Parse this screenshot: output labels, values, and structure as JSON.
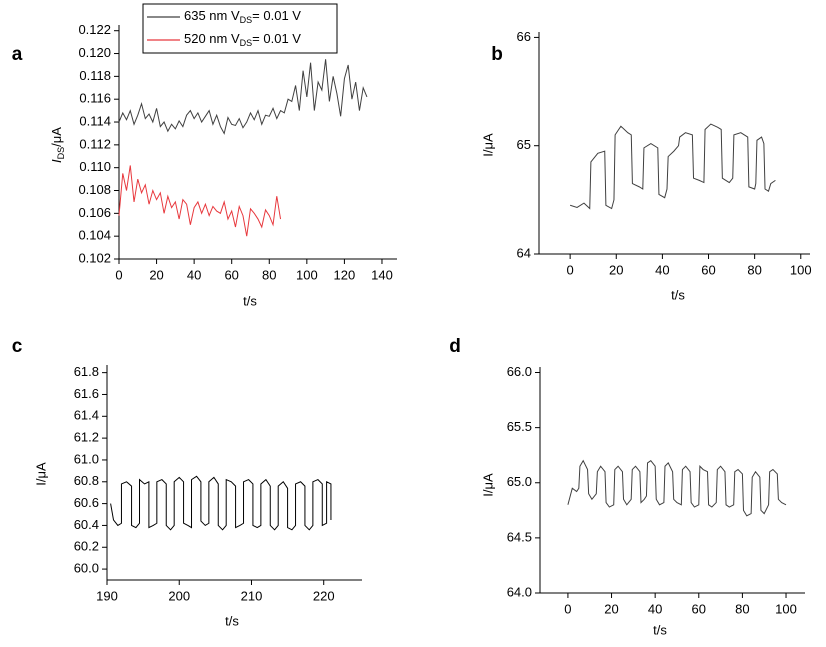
{
  "chart_data": [
    {
      "type": "line",
      "panel_label": "a",
      "xlabel": "t/s",
      "ylabel": "IDS/μA",
      "xlim": [
        0,
        148
      ],
      "ylim": [
        0.102,
        0.1225
      ],
      "xticks": [
        0,
        20,
        40,
        60,
        80,
        100,
        120,
        140
      ],
      "yticks": [
        0.102,
        0.104,
        0.106,
        0.108,
        {
          "value": 0.11,
          "label": "0.110"
        },
        0.112,
        0.114,
        0.116,
        0.118,
        {
          "value": 0.12,
          "label": "0.120"
        },
        0.122
      ],
      "series": [
        {
          "name": "635 nm VDS= 0.01 V",
          "color": "#404040",
          "x": [
            0,
            2,
            4,
            6,
            8,
            10,
            12,
            14,
            16,
            18,
            20,
            22,
            24,
            26,
            28,
            30,
            32,
            34,
            36,
            38,
            40,
            42,
            44,
            46,
            48,
            50,
            52,
            54,
            56,
            58,
            60,
            62,
            64,
            66,
            68,
            70,
            72,
            74,
            76,
            78,
            80,
            82,
            84,
            86,
            88,
            90,
            92,
            94,
            96,
            98,
            100,
            102,
            104,
            106,
            108,
            110,
            112,
            114,
            116,
            118,
            120,
            122,
            124,
            126,
            128,
            130,
            132
          ],
          "values": [
            0.114,
            0.1148,
            0.1142,
            0.115,
            0.1138,
            0.1146,
            0.1156,
            0.1143,
            0.1147,
            0.114,
            0.1152,
            0.1136,
            0.114,
            0.1132,
            0.1138,
            0.1134,
            0.1141,
            0.1136,
            0.1146,
            0.115,
            0.1143,
            0.1148,
            0.114,
            0.1145,
            0.115,
            0.1138,
            0.1146,
            0.1136,
            0.113,
            0.1144,
            0.1138,
            0.1137,
            0.1143,
            0.1135,
            0.114,
            0.1148,
            0.1142,
            0.115,
            0.1138,
            0.1146,
            0.1145,
            0.1152,
            0.1143,
            0.115,
            0.1148,
            0.116,
            0.1158,
            0.1172,
            0.115,
            0.1185,
            0.1162,
            0.1192,
            0.115,
            0.1175,
            0.1168,
            0.1195,
            0.1158,
            0.118,
            0.1165,
            0.1145,
            0.1178,
            0.119,
            0.116,
            0.1175,
            0.115,
            0.117,
            0.1162
          ]
        },
        {
          "name": "520 nm VDS= 0.01 V",
          "color": "#e8383d",
          "x": [
            0,
            2,
            4,
            6,
            8,
            10,
            12,
            14,
            16,
            18,
            20,
            22,
            24,
            26,
            28,
            30,
            32,
            34,
            36,
            38,
            40,
            42,
            44,
            46,
            48,
            50,
            52,
            54,
            56,
            58,
            60,
            62,
            64,
            66,
            68,
            70,
            72,
            74,
            76,
            78,
            80,
            82,
            84,
            86
          ],
          "values": [
            0.1058,
            0.1095,
            0.108,
            0.1102,
            0.107,
            0.109,
            0.1078,
            0.1085,
            0.1068,
            0.108,
            0.1072,
            0.1078,
            0.106,
            0.1075,
            0.1065,
            0.107,
            0.1055,
            0.1072,
            0.1068,
            0.105,
            0.1065,
            0.107,
            0.106,
            0.1068,
            0.1058,
            0.1066,
            0.1062,
            0.106,
            0.107,
            0.1055,
            0.1062,
            0.1048,
            0.1066,
            0.1058,
            0.104,
            0.1064,
            0.106,
            0.1055,
            0.1048,
            0.1063,
            0.1058,
            0.105,
            0.1075,
            0.1055
          ]
        }
      ]
    },
    {
      "type": "line",
      "panel_label": "b",
      "xlabel": "t/s",
      "ylabel": "I/μA",
      "xlim": [
        -13.5,
        104
      ],
      "ylim": [
        64,
        66.05
      ],
      "xticks": [
        0,
        20,
        40,
        60,
        80,
        100
      ],
      "yticks": [
        64,
        65,
        66
      ],
      "series": [
        {
          "color": "#404040",
          "x": [
            0,
            3,
            6,
            8.5,
            9,
            12,
            15,
            15.5,
            18,
            19,
            19.5,
            22,
            25,
            26.5,
            27,
            30,
            31.5,
            32,
            35,
            38,
            38.5,
            41,
            42,
            42.5,
            45,
            47,
            47.5,
            50,
            53,
            53.5,
            56,
            58,
            58.5,
            61,
            64,
            65.5,
            66,
            69,
            70.5,
            71,
            74,
            77,
            77.5,
            80,
            80.5,
            81,
            83,
            84,
            84.5,
            86,
            87,
            89
          ],
          "values": [
            64.45,
            64.43,
            64.47,
            64.42,
            64.85,
            64.93,
            64.95,
            64.45,
            64.42,
            64.5,
            65.1,
            65.18,
            65.12,
            65.1,
            64.65,
            64.62,
            64.6,
            64.98,
            65.02,
            64.98,
            64.55,
            64.52,
            64.6,
            64.9,
            64.95,
            65.0,
            65.08,
            65.12,
            65.1,
            64.7,
            64.68,
            64.66,
            65.15,
            65.2,
            65.17,
            65.15,
            64.7,
            64.66,
            64.7,
            65.1,
            65.12,
            65.08,
            64.62,
            64.6,
            64.65,
            65.05,
            65.08,
            65.02,
            64.6,
            64.58,
            64.65,
            64.68
          ]
        }
      ]
    },
    {
      "type": "line",
      "panel_label": "c",
      "xlabel": "t/s",
      "ylabel": "I/μA",
      "xlim": [
        190,
        225.3
      ],
      "ylim": [
        59.9,
        61.87
      ],
      "xticks": [
        190,
        200,
        210,
        220
      ],
      "yticks": [
        {
          "value": 60,
          "label": "60.0"
        },
        60.2,
        60.4,
        60.6,
        60.8,
        {
          "value": 61,
          "label": "61.0"
        },
        61.2,
        61.4,
        61.6,
        61.8
      ],
      "series": [
        {
          "color": "#000000",
          "x": [
            190.5,
            190.9,
            191.5,
            192.0,
            192.0,
            192.7,
            193.4,
            193.4,
            194.0,
            194.5,
            194.5,
            195.2,
            195.8,
            195.8,
            196.4,
            196.9,
            196.9,
            197.6,
            198.2,
            198.2,
            198.8,
            199.3,
            199.3,
            200.0,
            200.6,
            200.6,
            201.2,
            201.7,
            201.7,
            202.4,
            203.0,
            203.0,
            203.6,
            204.1,
            204.1,
            204.8,
            205.4,
            205.4,
            206.0,
            206.5,
            206.5,
            207.2,
            207.8,
            207.8,
            208.4,
            208.9,
            208.9,
            209.6,
            210.2,
            210.2,
            210.8,
            211.3,
            211.3,
            212.0,
            212.6,
            212.6,
            213.2,
            213.7,
            213.7,
            214.4,
            215.0,
            215.0,
            215.6,
            216.1,
            216.1,
            216.8,
            217.4,
            217.4,
            218.0,
            218.5,
            218.5,
            219.2,
            219.8,
            219.8,
            220.4,
            220.4,
            221.0,
            221.0
          ],
          "values": [
            60.6,
            60.45,
            60.4,
            60.42,
            60.78,
            60.8,
            60.76,
            60.4,
            60.38,
            60.42,
            60.82,
            60.78,
            60.8,
            60.38,
            60.4,
            60.42,
            60.8,
            60.82,
            60.78,
            60.4,
            60.36,
            60.4,
            60.8,
            60.84,
            60.8,
            60.42,
            60.4,
            60.38,
            60.82,
            60.85,
            60.8,
            60.44,
            60.4,
            60.42,
            60.8,
            60.84,
            60.78,
            60.4,
            60.36,
            60.4,
            60.82,
            60.8,
            60.76,
            60.38,
            60.4,
            60.42,
            60.8,
            60.82,
            60.78,
            60.4,
            60.38,
            60.4,
            60.78,
            60.82,
            60.76,
            60.4,
            60.36,
            60.4,
            60.76,
            60.8,
            60.74,
            60.38,
            60.36,
            60.4,
            60.78,
            60.8,
            60.76,
            60.4,
            60.36,
            60.4,
            60.8,
            60.82,
            60.78,
            60.4,
            60.42,
            60.8,
            60.78,
            60.45
          ]
        }
      ]
    },
    {
      "type": "line",
      "panel_label": "d",
      "xlabel": "t/s",
      "ylabel": "I/μA",
      "xlim": [
        -12.8,
        108.7
      ],
      "ylim": [
        64,
        66.05
      ],
      "xticks": [
        0,
        20,
        40,
        60,
        80,
        100
      ],
      "yticks": [
        {
          "value": 64,
          "label": "64.0"
        },
        64.5,
        {
          "value": 65,
          "label": "65.0"
        },
        65.5,
        {
          "value": 66,
          "label": "66.0"
        }
      ],
      "series": [
        {
          "color": "#404040",
          "x": [
            0,
            2,
            4,
            5,
            5.5,
            7,
            9,
            9.5,
            11,
            13,
            13.5,
            15,
            17,
            17.5,
            19,
            21,
            21.5,
            23,
            25,
            25.5,
            27,
            29,
            29.5,
            31,
            33,
            33.5,
            35,
            36,
            36.5,
            38,
            40,
            40.5,
            42,
            44,
            44.5,
            46,
            48,
            48.5,
            50,
            52,
            52.5,
            54,
            56,
            56.5,
            58,
            60,
            60.5,
            62,
            64,
            64.5,
            66,
            68,
            68.5,
            70,
            72,
            72.5,
            74,
            76,
            76.5,
            78,
            80,
            80.5,
            82,
            84,
            84.5,
            86,
            88,
            88.5,
            90,
            92,
            92.5,
            94,
            96,
            96.5,
            98,
            100
          ],
          "values": [
            64.8,
            64.95,
            64.92,
            64.95,
            65.15,
            65.2,
            65.12,
            64.9,
            64.85,
            64.9,
            65.1,
            65.15,
            65.1,
            64.82,
            64.78,
            64.8,
            65.12,
            65.15,
            65.1,
            64.85,
            64.8,
            64.85,
            65.12,
            65.15,
            65.1,
            64.82,
            64.85,
            64.88,
            65.18,
            65.2,
            65.15,
            64.85,
            64.8,
            64.82,
            65.15,
            65.18,
            65.1,
            64.85,
            64.82,
            64.8,
            65.12,
            65.15,
            65.1,
            64.82,
            64.78,
            64.8,
            65.15,
            65.12,
            65.1,
            64.8,
            64.78,
            64.82,
            65.12,
            65.15,
            65.1,
            64.8,
            64.78,
            64.8,
            65.1,
            65.12,
            65.08,
            64.75,
            64.7,
            64.72,
            65.05,
            65.1,
            65.05,
            64.75,
            64.72,
            64.8,
            65.1,
            65.12,
            65.08,
            64.85,
            64.82,
            64.8
          ]
        }
      ]
    }
  ]
}
